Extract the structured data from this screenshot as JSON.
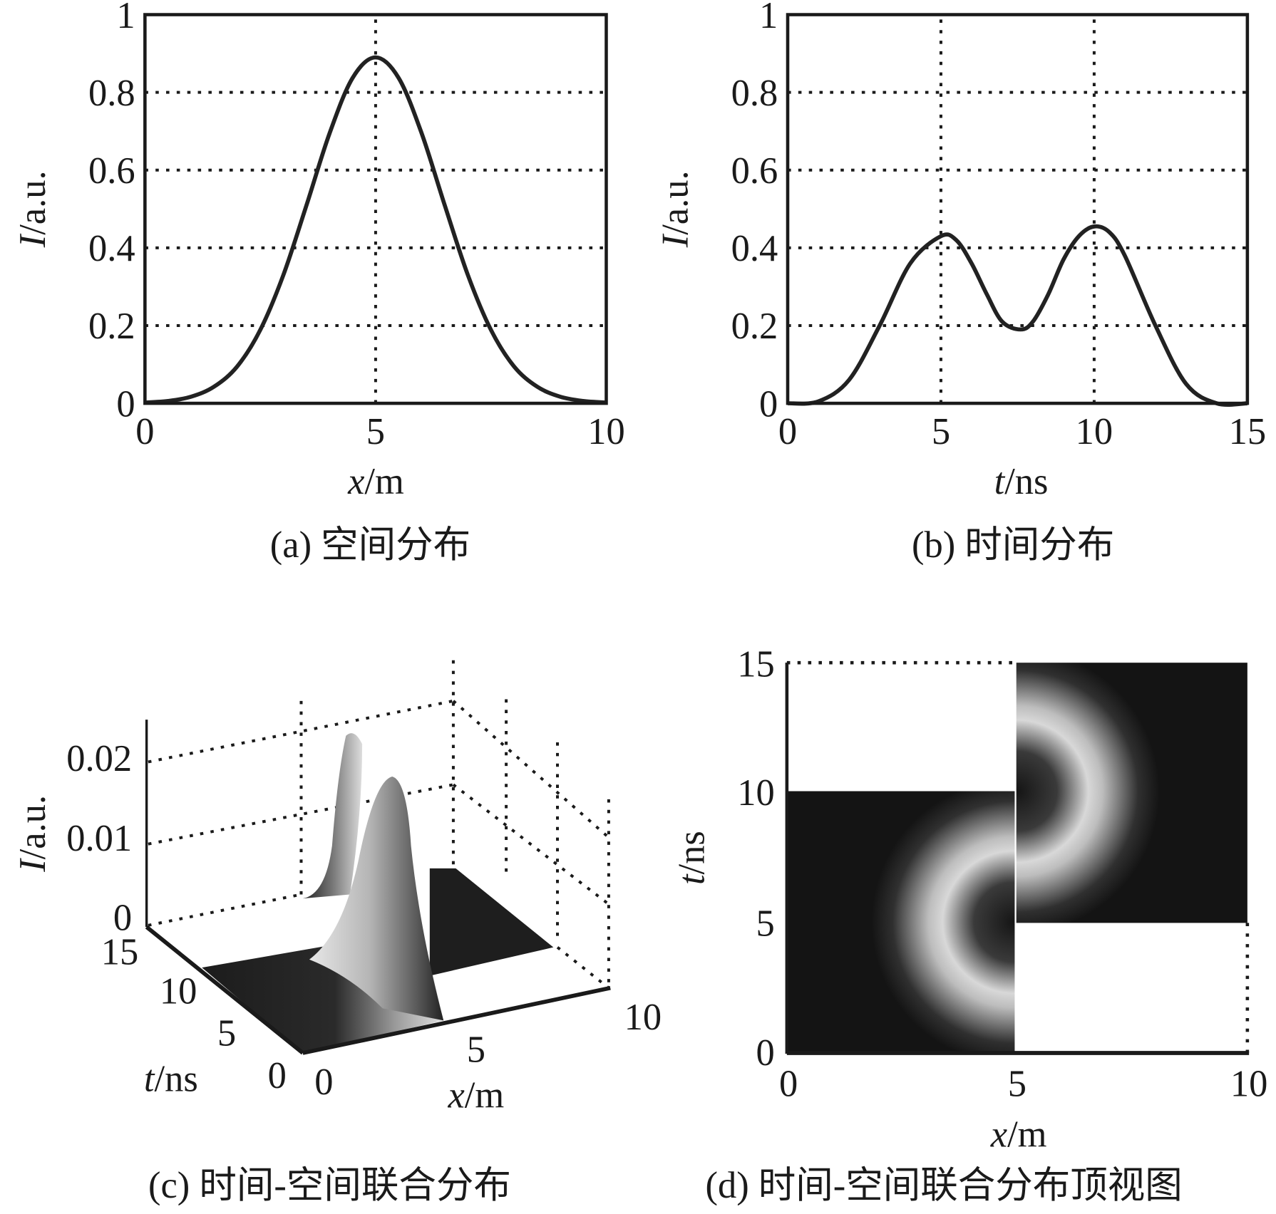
{
  "chart_data": [
    {
      "panel": "a",
      "type": "line",
      "caption": "(a) 空间分布",
      "xlabel_var": "x",
      "xlabel_unit": "/m",
      "ylabel_var": "I",
      "ylabel_unit": "/a.u.",
      "xlim": [
        0,
        10
      ],
      "ylim": [
        0,
        1
      ],
      "xticks": [
        0,
        5,
        10
      ],
      "xtick_labels": [
        "0",
        "5",
        "10"
      ],
      "yticks": [
        0,
        0.2,
        0.4,
        0.6,
        0.8,
        1
      ],
      "ytick_labels": [
        "0",
        "0.2",
        "0.4",
        "0.6",
        "0.8",
        "1"
      ],
      "grid_x": [
        5
      ],
      "grid_y": [
        0.2,
        0.4,
        0.6,
        0.8
      ],
      "x": [
        0,
        0.5,
        1,
        1.5,
        2,
        2.5,
        3,
        3.5,
        4,
        4.5,
        5,
        5.5,
        6,
        6.5,
        7,
        7.5,
        8,
        8.5,
        9,
        9.5,
        10
      ],
      "y": [
        0.002,
        0.006,
        0.017,
        0.043,
        0.095,
        0.189,
        0.33,
        0.509,
        0.694,
        0.837,
        0.89,
        0.837,
        0.694,
        0.509,
        0.33,
        0.189,
        0.095,
        0.043,
        0.017,
        0.006,
        0.002
      ]
    },
    {
      "panel": "b",
      "type": "line",
      "caption": "(b) 时间分布",
      "xlabel_var": "t",
      "xlabel_unit": "/ns",
      "ylabel_var": "I",
      "ylabel_unit": "/a.u.",
      "xlim": [
        0,
        15
      ],
      "ylim": [
        0,
        1
      ],
      "xticks": [
        0,
        5,
        10,
        15
      ],
      "xtick_labels": [
        "0",
        "5",
        "10",
        "15"
      ],
      "yticks": [
        0,
        0.2,
        0.4,
        0.6,
        0.8,
        1
      ],
      "ytick_labels": [
        "0",
        "0.2",
        "0.4",
        "0.6",
        "0.8",
        "1"
      ],
      "grid_x": [
        5,
        10
      ],
      "grid_y": [
        0.2,
        0.4,
        0.6,
        0.8
      ],
      "x": [
        0,
        1,
        2,
        3,
        4,
        5,
        5.5,
        6,
        6.5,
        7,
        7.6,
        8,
        8.5,
        9,
        9.5,
        10,
        10.5,
        11,
        12,
        13,
        14,
        15
      ],
      "y": [
        0,
        0.005,
        0.06,
        0.2,
        0.36,
        0.43,
        0.42,
        0.36,
        0.28,
        0.21,
        0.19,
        0.21,
        0.28,
        0.37,
        0.43,
        0.455,
        0.44,
        0.38,
        0.2,
        0.05,
        0,
        0
      ]
    },
    {
      "panel": "c",
      "type": "surface",
      "caption": "(c) 时间-空间联合分布",
      "xlabel_var": "x",
      "xlabel_unit": "/m",
      "ylabel_var": "t",
      "ylabel_unit": "/ns",
      "zlabel_var": "I",
      "zlabel_unit": "/a.u.",
      "xtick_labels": [
        "0",
        "5",
        "10"
      ],
      "ytick_labels": [
        "0",
        "5",
        "10",
        "15"
      ],
      "ztick_labels": [
        "0",
        "0.01",
        "0.02"
      ],
      "zlim": [
        0,
        0.025
      ]
    },
    {
      "panel": "d",
      "type": "heatmap",
      "caption": "(d) 时间-空间联合分布顶视图",
      "xlabel_var": "x",
      "xlabel_unit": "/m",
      "ylabel_var": "t",
      "ylabel_unit": "/ns",
      "xlim": [
        0,
        10
      ],
      "ylim": [
        0,
        15
      ],
      "xtick_labels": [
        "0",
        "5",
        "10"
      ],
      "ytick_labels": [
        "0",
        "5",
        "10",
        "15"
      ],
      "blocks": [
        {
          "x": [
            0,
            5
          ],
          "t": [
            0,
            10
          ],
          "ring_center": [
            5,
            5
          ]
        },
        {
          "x": [
            5,
            10
          ],
          "t": [
            5,
            15
          ],
          "ring_center": [
            5,
            10
          ]
        }
      ]
    }
  ]
}
